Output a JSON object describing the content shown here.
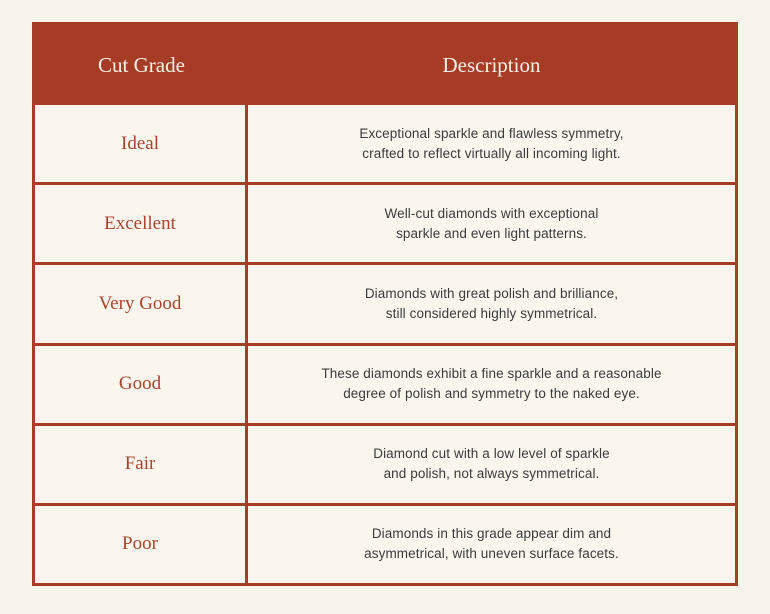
{
  "page": {
    "background_color": "#f8f3ea"
  },
  "table": {
    "accent_color": "#a63b26",
    "cell_background": "#faf6ed",
    "header_text_color": "#f7f1e5",
    "grade_text_color": "#a8432f",
    "description_text_color": "#3b3b3b",
    "headers": {
      "grade": "Cut Grade",
      "description": "Description"
    },
    "rows": [
      {
        "grade": "Ideal",
        "description": "Exceptional sparkle and flawless symmetry,\ncrafted to reflect virtually all incoming light."
      },
      {
        "grade": "Excellent",
        "description": "Well-cut diamonds with exceptional\nsparkle and even light patterns."
      },
      {
        "grade": "Very Good",
        "description": "Diamonds with great polish and brilliance,\nstill considered highly symmetrical."
      },
      {
        "grade": "Good",
        "description": "These diamonds exhibit a fine sparkle and a reasonable\ndegree of polish and symmetry to the naked eye."
      },
      {
        "grade": "Fair",
        "description": "Diamond cut with a low level of sparkle\nand polish, not always symmetrical."
      },
      {
        "grade": "Poor",
        "description": "Diamonds in this grade appear dim and\nasymmetrical, with uneven surface facets."
      }
    ]
  }
}
